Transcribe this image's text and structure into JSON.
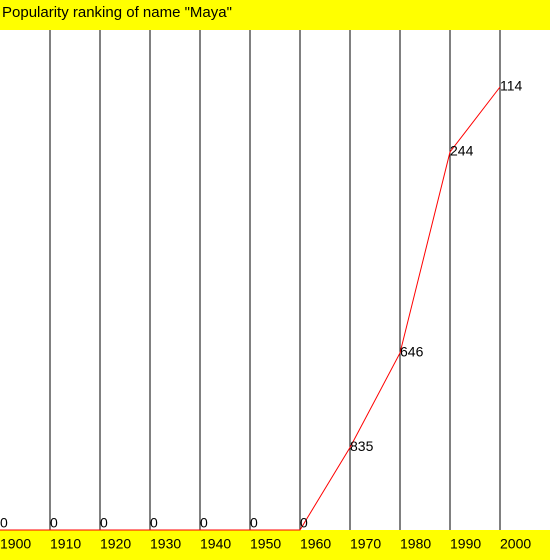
{
  "chart_data": {
    "type": "line",
    "title": "Popularity ranking of name \"Maya\"",
    "x": [
      1900,
      1910,
      1920,
      1930,
      1940,
      1950,
      1960,
      1970,
      1980,
      1990,
      2000
    ],
    "series": [
      {
        "name": "Maya",
        "color": "#ff0000",
        "values": [
          0,
          0,
          0,
          0,
          0,
          0,
          0,
          835,
          646,
          244,
          114
        ]
      }
    ],
    "xlim": [
      1900,
      2000
    ],
    "ylim": [
      1000,
      0
    ],
    "background": "#ffff00"
  }
}
